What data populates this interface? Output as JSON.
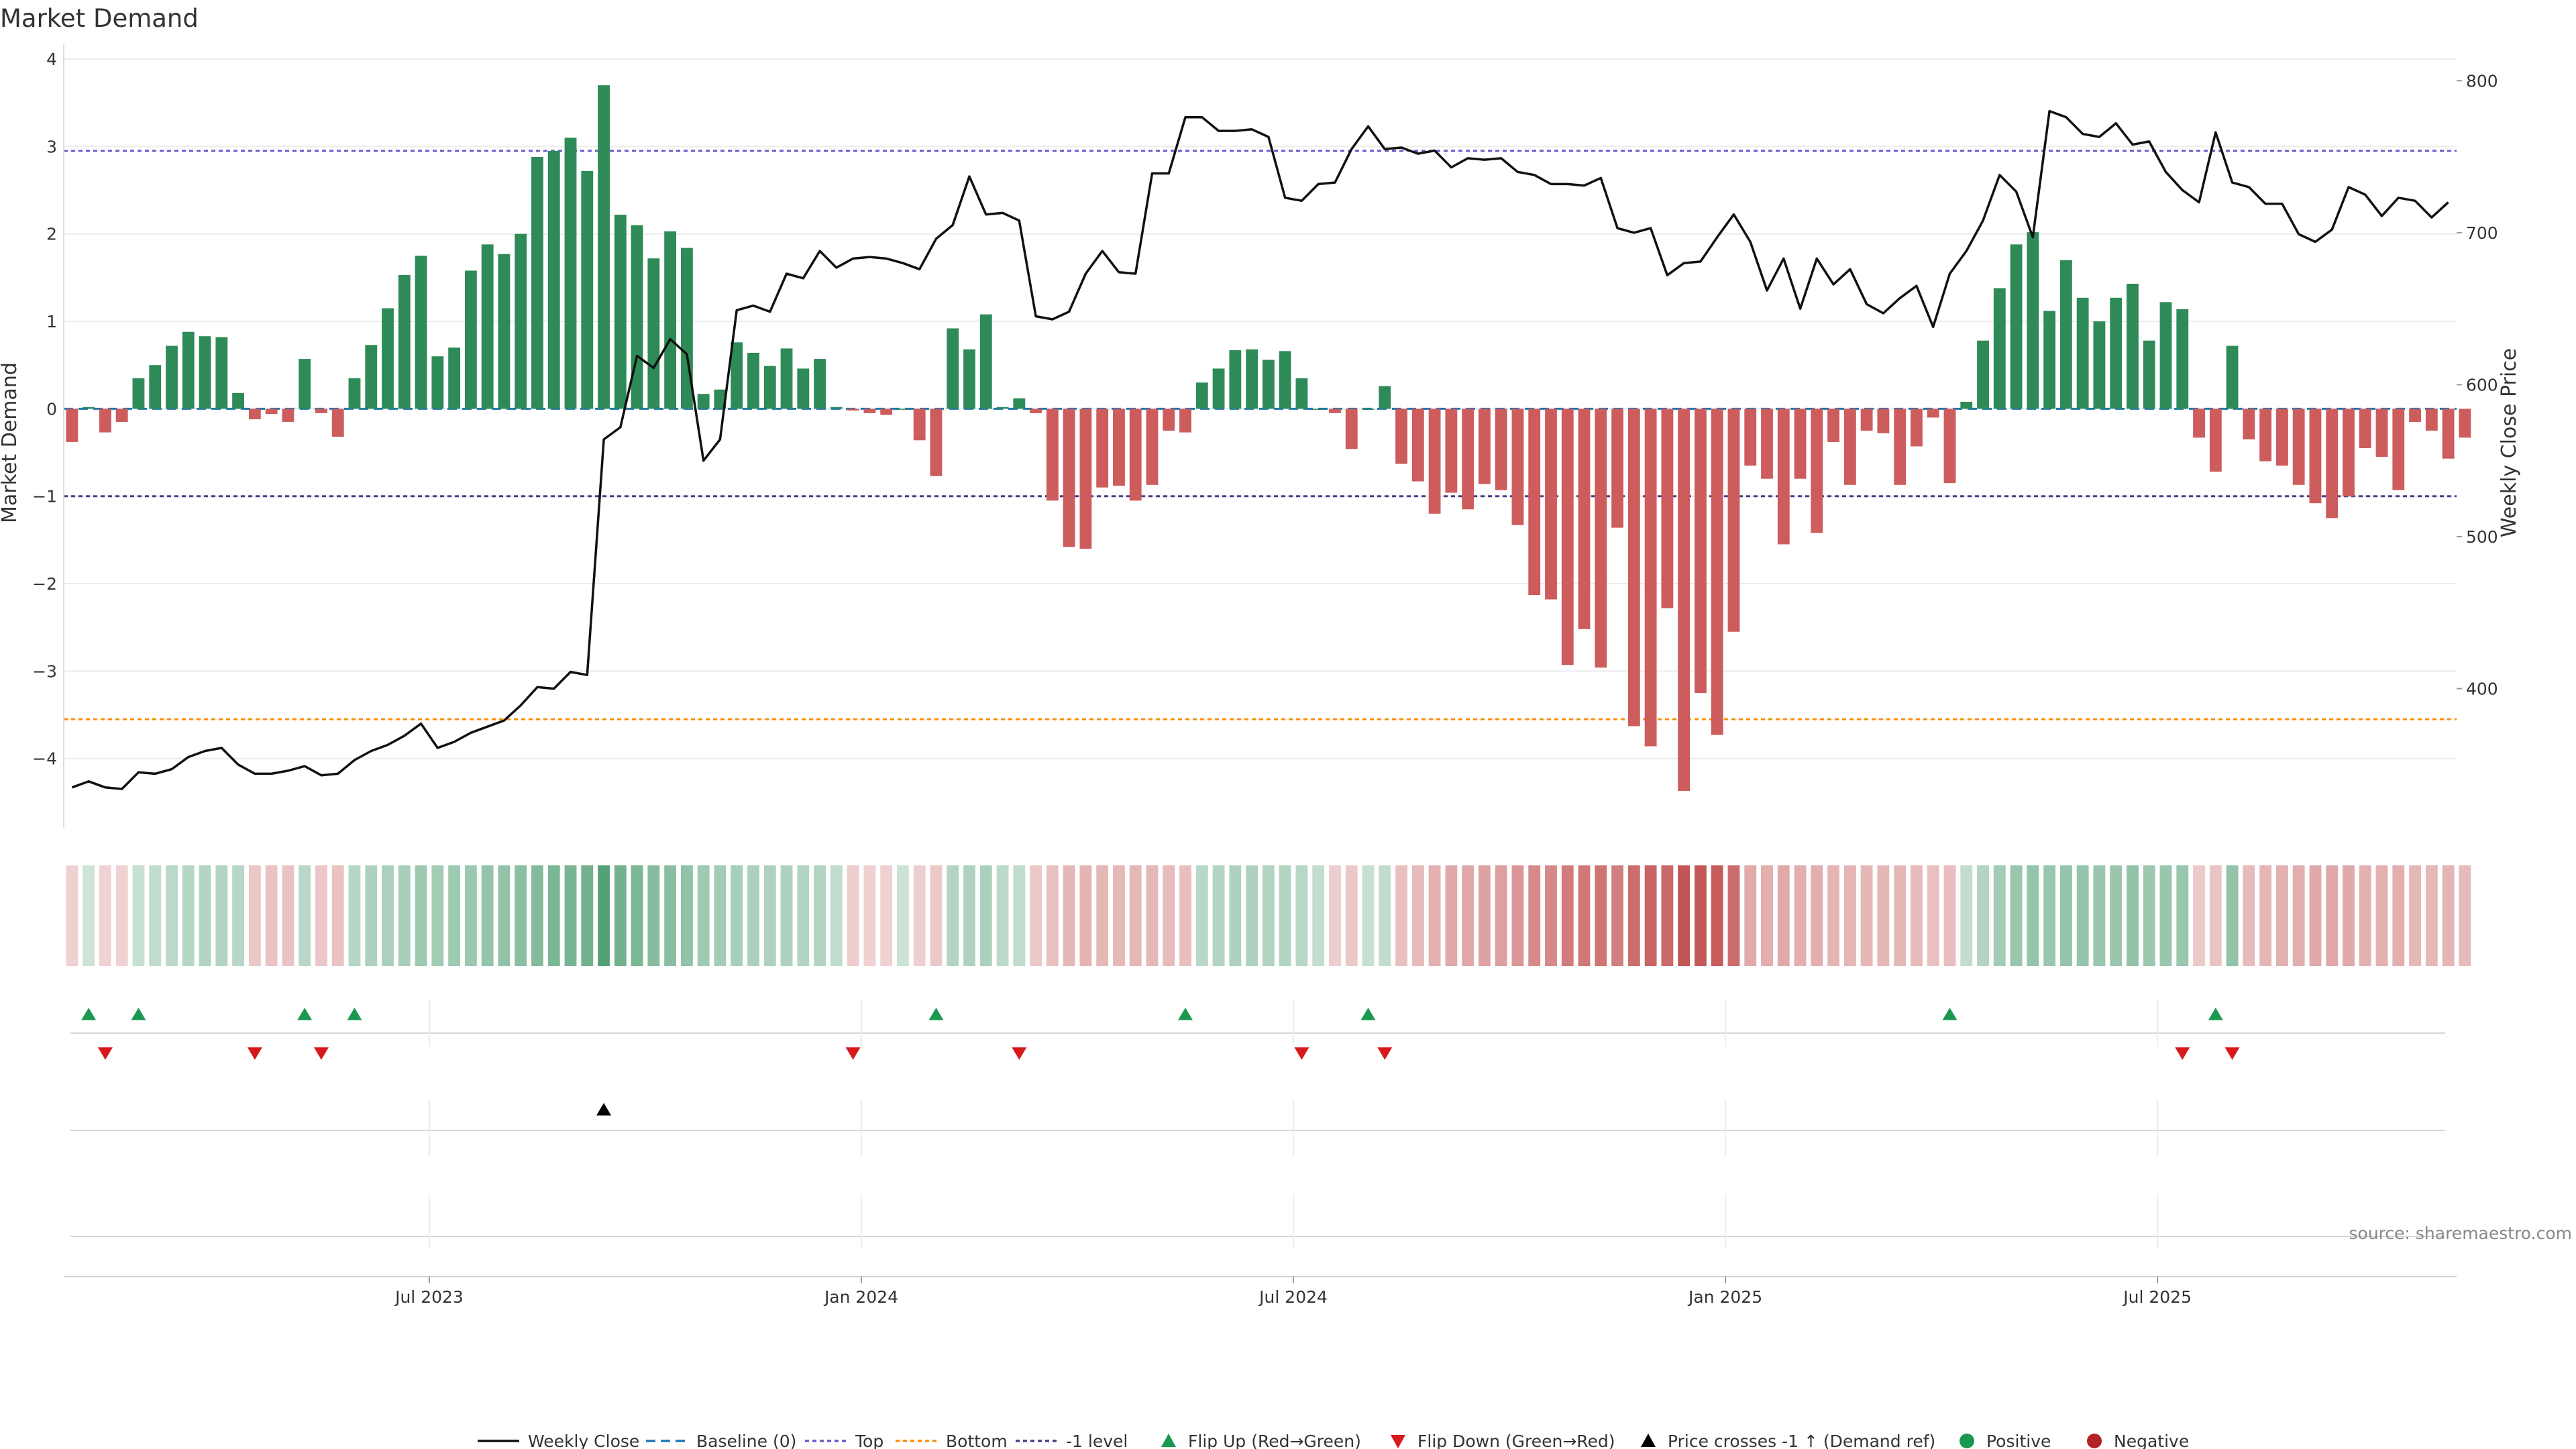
{
  "chart_data": {
    "type": "bar",
    "title": "Market Demand",
    "ylabel": "Market Demand",
    "y2label": "Weekly Close Price",
    "ylim": [
      -4.8,
      4.1
    ],
    "y2lim": [
      308,
      820
    ],
    "yticks": [
      4,
      3,
      2,
      1,
      0,
      -1,
      -2,
      -3,
      -4
    ],
    "y2ticks": [
      800,
      700,
      600,
      500,
      400
    ],
    "xticks": [
      "Jul 2023",
      "Jan 2024",
      "Jul 2024",
      "Jan 2025",
      "Jul 2025"
    ],
    "xtick_weeks": [
      22,
      48,
      74,
      100,
      126
    ],
    "grid": true,
    "legend_position": "bottom",
    "reference_lines": {
      "top": 2.95,
      "bottom": -3.55,
      "minus_one": -1.0,
      "baseline": 0
    },
    "colors": {
      "positive": "#2e8b57",
      "negative": "#cd5c5c",
      "price": "#111111",
      "flip_up": "#1a9850",
      "flip_down": "#d7191c",
      "top": "#6a5acd",
      "bottom": "#ff8c00",
      "minus_one": "#483d8b",
      "baseline": "#1f77b4"
    },
    "weeks_count": 144,
    "demand": [
      -0.38,
      0.02,
      -0.27,
      -0.15,
      0.35,
      0.5,
      0.72,
      0.88,
      0.83,
      0.82,
      0.18,
      -0.12,
      -0.06,
      -0.15,
      0.57,
      -0.05,
      -0.32,
      0.35,
      0.73,
      1.15,
      1.53,
      1.75,
      0.6,
      0.7,
      1.58,
      1.88,
      1.77,
      2.0,
      2.88,
      2.95,
      3.1,
      2.72,
      3.7,
      2.22,
      2.1,
      1.72,
      2.03,
      1.84,
      0.17,
      0.22,
      0.76,
      0.64,
      0.49,
      0.69,
      0.46,
      0.57,
      0.02,
      -0.02,
      -0.05,
      -0.07,
      0.0,
      -0.36,
      -0.77,
      0.92,
      0.68,
      1.08,
      0.02,
      0.12,
      -0.05,
      -1.05,
      -1.58,
      -1.6,
      -0.9,
      -0.88,
      -1.05,
      -0.87,
      -0.25,
      -0.27,
      0.3,
      0.46,
      0.67,
      0.68,
      0.56,
      0.66,
      0.35,
      0.0,
      -0.05,
      -0.46,
      0.0,
      0.26,
      -0.63,
      -0.83,
      -1.2,
      -0.96,
      -1.15,
      -0.86,
      -0.93,
      -1.33,
      -2.13,
      -2.18,
      -2.93,
      -2.52,
      -2.96,
      -1.36,
      -3.63,
      -3.86,
      -2.28,
      -4.37,
      -3.25,
      -3.73,
      -2.55,
      -0.65,
      -0.8,
      -1.55,
      -0.8,
      -1.42,
      -0.38,
      -0.87,
      -0.25,
      -0.28,
      -0.87,
      -0.43,
      -0.1,
      -0.85,
      0.08,
      0.78,
      1.38,
      1.88,
      2.02,
      1.12,
      1.7,
      1.27,
      1.0,
      1.27,
      1.43,
      0.78,
      1.22,
      1.14,
      -0.33,
      -0.72,
      0.72,
      -0.35,
      -0.6,
      -0.65,
      -0.87,
      -1.08,
      -1.25,
      -1.0,
      -0.45,
      -0.55,
      -0.93,
      -0.15,
      -0.25,
      -0.57,
      -0.33
    ],
    "weekly_close": [
      335,
      339,
      335,
      334,
      345,
      344,
      347,
      355,
      359,
      361,
      350,
      344,
      344,
      346,
      349,
      343,
      344,
      353,
      359,
      363,
      369,
      377,
      361,
      365,
      371,
      375,
      379,
      389,
      401,
      400,
      411,
      409,
      564,
      572,
      619,
      611,
      630,
      620,
      550,
      564,
      649,
      652,
      648,
      673,
      670,
      688,
      677,
      683,
      684,
      683,
      680,
      676,
      696,
      705,
      737,
      712,
      713,
      708,
      645,
      643,
      648,
      673,
      688,
      674,
      673,
      739,
      739,
      776,
      776,
      767,
      767,
      768,
      763,
      723,
      721,
      732,
      733,
      755,
      770,
      755,
      756,
      752,
      754,
      743,
      749,
      748,
      749,
      740,
      738,
      732,
      732,
      731,
      736,
      703,
      700,
      703,
      672,
      680,
      681,
      697,
      712,
      694,
      662,
      683,
      650,
      683,
      666,
      676,
      653,
      647,
      657,
      665,
      638,
      673,
      688,
      708,
      738,
      727,
      697,
      780,
      776,
      765,
      763,
      772,
      758,
      760,
      740,
      728,
      720,
      766,
      733,
      730,
      719,
      719,
      699,
      694,
      702,
      730,
      725,
      711,
      723,
      721,
      710,
      720
    ],
    "heat_fractions": [
      0.06,
      0.04,
      0.05,
      0.05,
      0.08,
      0.12,
      0.15,
      0.18,
      0.2,
      0.2,
      0.16,
      0.12,
      0.14,
      0.14,
      0.16,
      0.12,
      0.15,
      0.18,
      0.22,
      0.24,
      0.26,
      0.3,
      0.28,
      0.3,
      0.33,
      0.36,
      0.38,
      0.42,
      0.46,
      0.5,
      0.52,
      0.55,
      0.72,
      0.55,
      0.5,
      0.45,
      0.42,
      0.38,
      0.3,
      0.28,
      0.26,
      0.24,
      0.22,
      0.22,
      0.2,
      0.2,
      0.12,
      0.08,
      0.06,
      0.06,
      0.06,
      0.07,
      0.1,
      0.2,
      0.22,
      0.24,
      0.14,
      0.12,
      0.1,
      0.16,
      0.22,
      0.24,
      0.22,
      0.22,
      0.22,
      0.22,
      0.2,
      0.18,
      0.16,
      0.2,
      0.22,
      0.22,
      0.2,
      0.2,
      0.16,
      0.1,
      0.08,
      0.1,
      0.08,
      0.1,
      0.16,
      0.2,
      0.26,
      0.3,
      0.32,
      0.35,
      0.38,
      0.42,
      0.5,
      0.52,
      0.6,
      0.62,
      0.65,
      0.58,
      0.7,
      0.75,
      0.72,
      0.85,
      0.82,
      0.8,
      0.7,
      0.3,
      0.28,
      0.3,
      0.28,
      0.28,
      0.24,
      0.24,
      0.22,
      0.22,
      0.22,
      0.2,
      0.16,
      0.18,
      0.1,
      0.2,
      0.28,
      0.34,
      0.36,
      0.34,
      0.36,
      0.36,
      0.34,
      0.34,
      0.38,
      0.32,
      0.34,
      0.34,
      0.1,
      0.14,
      0.36,
      0.2,
      0.24,
      0.26,
      0.28,
      0.3,
      0.32,
      0.3,
      0.26,
      0.26,
      0.28,
      0.22,
      0.22,
      0.24,
      0.2
    ],
    "flip_up_weeks": [
      1,
      4,
      14,
      17,
      52,
      67,
      78,
      113,
      129
    ],
    "flip_down_weeks": [
      2,
      11,
      15,
      47,
      57,
      74,
      79,
      127,
      130
    ],
    "price_cross_weeks": [
      32
    ],
    "legend": [
      "Weekly Close",
      "Baseline (0)",
      "Top",
      "Bottom",
      "-1 level",
      "Flip Up (Red→Green)",
      "Flip Down (Green→Red)",
      "Price crosses -1 ↑ (Demand ref)",
      "Positive",
      "Negative"
    ],
    "source": "source: sharemaestro.com"
  }
}
